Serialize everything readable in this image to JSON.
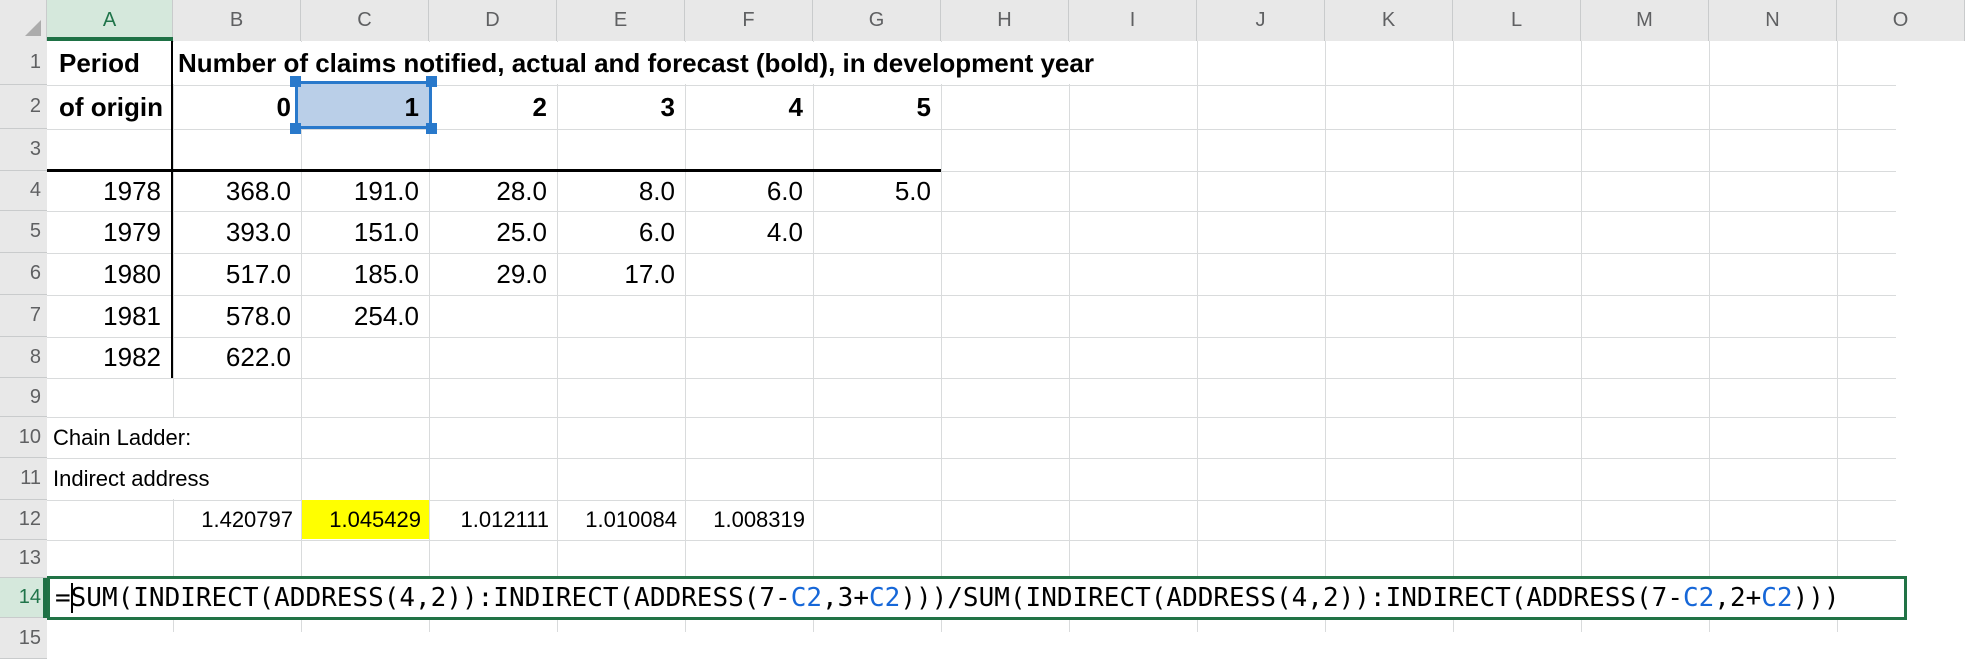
{
  "colors": {
    "accent_green": "#217346",
    "selection_blue": "#2979CB",
    "highlight_yellow": "#FFFF00",
    "formula_ref_blue": "#1667D8"
  },
  "headers": {
    "cols": [
      "A",
      "B",
      "C",
      "D",
      "E",
      "F",
      "G",
      "H",
      "I",
      "J",
      "K",
      "L",
      "M",
      "N",
      "O"
    ],
    "rows": [
      "1",
      "2",
      "3",
      "4",
      "5",
      "6",
      "7",
      "8",
      "9",
      "10",
      "11",
      "12",
      "13",
      "14",
      "15"
    ],
    "selected_col": "A",
    "selected_row": "14"
  },
  "claims_table": {
    "row_label_line1": "Period",
    "row_label_line2": "of origin",
    "title": "Number of claims notified, actual and forecast (bold), in development year",
    "dev_years": [
      "0",
      "1",
      "2",
      "3",
      "4",
      "5"
    ],
    "origin_rows": [
      {
        "year": "1978",
        "values": [
          "368.0",
          "191.0",
          "28.0",
          "8.0",
          "6.0",
          "5.0"
        ]
      },
      {
        "year": "1979",
        "values": [
          "393.0",
          "151.0",
          "25.0",
          "6.0",
          "4.0"
        ]
      },
      {
        "year": "1980",
        "values": [
          "517.0",
          "185.0",
          "29.0",
          "17.0"
        ]
      },
      {
        "year": "1981",
        "values": [
          "578.0",
          "254.0"
        ]
      },
      {
        "year": "1982",
        "values": [
          "622.0"
        ]
      }
    ]
  },
  "chain_ladder": {
    "label": "Chain Ladder:",
    "method_label": "Indirect address",
    "development_factors": [
      "1.420797",
      "1.045429",
      "1.012111",
      "1.010084",
      "1.008319"
    ],
    "highlighted_factor": "1.045429"
  },
  "selection": {
    "cell": "C2",
    "value": "1"
  },
  "formula": {
    "cell": "A14",
    "text": "=SUM(INDIRECT(ADDRESS(4,2)):INDIRECT(ADDRESS(7-C2,3+C2)))/SUM(INDIRECT(ADDRESS(4,2)):INDIRECT(ADDRESS(7-C2,2+C2)))",
    "segments": [
      {
        "t": "=SUM(INDIRECT(ADDRESS(4,2)):INDIRECT(ADDRESS(7-",
        "ref": false
      },
      {
        "t": "C2",
        "ref": true
      },
      {
        "t": ",3+",
        "ref": false
      },
      {
        "t": "C2",
        "ref": true
      },
      {
        "t": ")))/SUM(INDIRECT(ADDRESS(4,2)):INDIRECT(ADDRESS(7-",
        "ref": false
      },
      {
        "t": "C2",
        "ref": true
      },
      {
        "t": ",2+",
        "ref": false
      },
      {
        "t": "C2",
        "ref": true
      },
      {
        "t": ")))",
        "ref": false
      }
    ]
  }
}
